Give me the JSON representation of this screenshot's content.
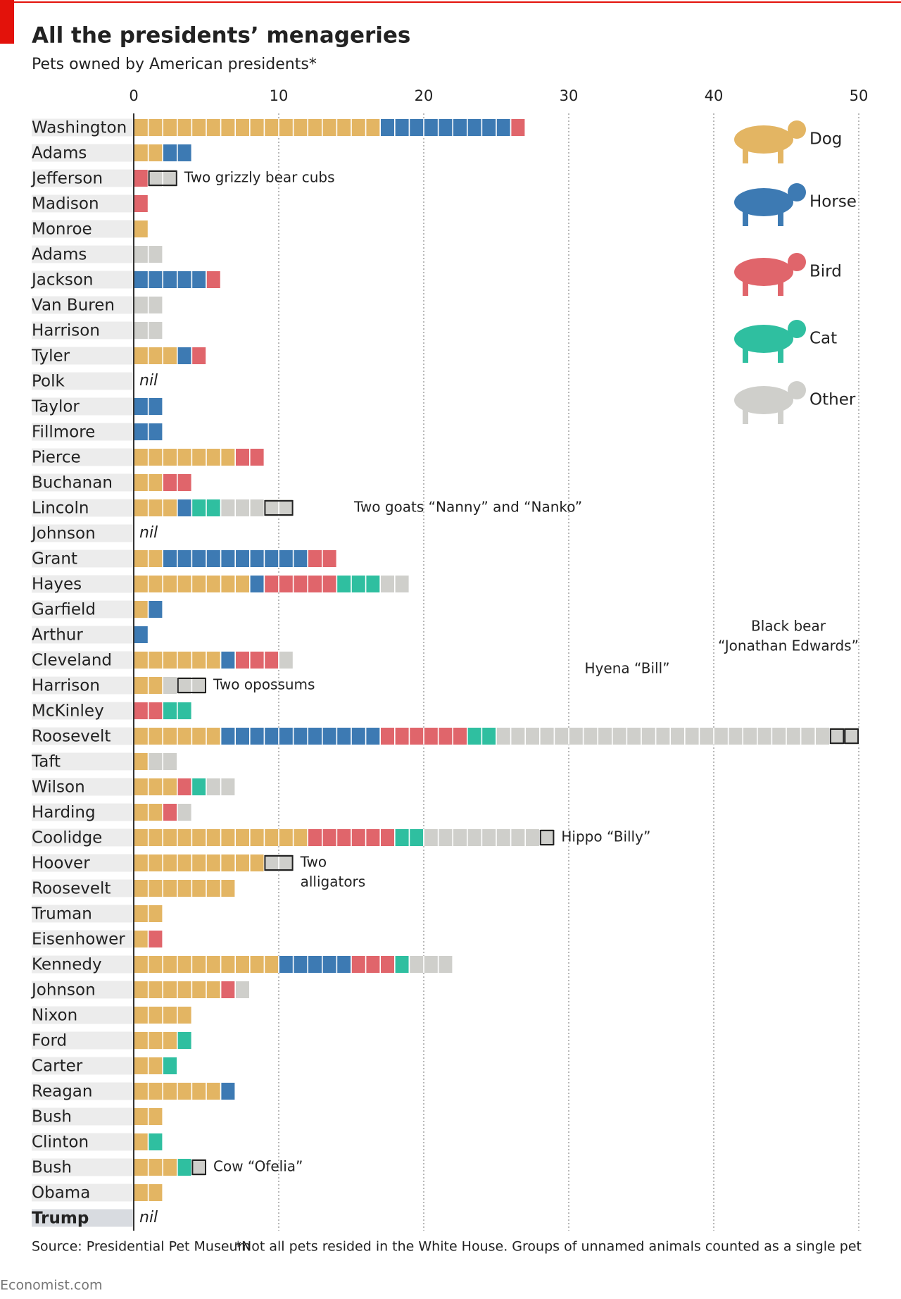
{
  "chart_data": {
    "type": "bar",
    "title": "All the presidents’ menageries",
    "subtitle": "Pets owned by American presidents*",
    "source": "Source: Presidential Pet Museum",
    "footnote": "*Not all pets resided in the White House. Groups of unnamed animals counted as a single pet",
    "brand": "Economist.com",
    "xlim": [
      0,
      50
    ],
    "xticks": [
      0,
      10,
      20,
      30,
      40,
      50
    ],
    "grid": true,
    "legend": "right",
    "categories": [
      "Washington",
      "Adams",
      "Jefferson",
      "Madison",
      "Monroe",
      "Adams",
      "Jackson",
      "Van Buren",
      "Harrison",
      "Tyler",
      "Polk",
      "Taylor",
      "Fillmore",
      "Pierce",
      "Buchanan",
      "Lincoln",
      "Johnson",
      "Grant",
      "Hayes",
      "Garfield",
      "Arthur",
      "Cleveland",
      "Harrison",
      "McKinley",
      "Roosevelt",
      "Taft",
      "Wilson",
      "Harding",
      "Coolidge",
      "Hoover",
      "Roosevelt",
      "Truman",
      "Eisenhower",
      "Kennedy",
      "Johnson",
      "Nixon",
      "Ford",
      "Carter",
      "Reagan",
      "Bush",
      "Clinton",
      "Bush",
      "Obama",
      "Trump"
    ],
    "value_labels": [
      null,
      null,
      null,
      null,
      null,
      null,
      null,
      null,
      null,
      null,
      "nil",
      null,
      null,
      null,
      null,
      null,
      "nil",
      null,
      null,
      null,
      null,
      null,
      null,
      null,
      null,
      null,
      null,
      null,
      null,
      null,
      null,
      null,
      null,
      null,
      null,
      null,
      null,
      null,
      null,
      null,
      null,
      null,
      null,
      "nil"
    ],
    "series": [
      {
        "name": "Dog",
        "color": "#e3b563",
        "values": [
          17,
          2,
          0,
          0,
          1,
          0,
          0,
          0,
          0,
          3,
          0,
          0,
          0,
          7,
          2,
          3,
          0,
          2,
          8,
          1,
          0,
          6,
          2,
          0,
          6,
          1,
          3,
          2,
          12,
          9,
          7,
          2,
          1,
          10,
          6,
          4,
          3,
          2,
          6,
          2,
          1,
          3,
          2,
          0
        ]
      },
      {
        "name": "Horse",
        "color": "#3d7ab3",
        "values": [
          9,
          2,
          0,
          0,
          0,
          0,
          5,
          0,
          0,
          1,
          0,
          2,
          2,
          0,
          0,
          1,
          0,
          10,
          1,
          1,
          1,
          1,
          0,
          0,
          11,
          0,
          0,
          0,
          0,
          0,
          0,
          0,
          0,
          5,
          0,
          0,
          0,
          0,
          1,
          0,
          0,
          0,
          0,
          0
        ]
      },
      {
        "name": "Bird",
        "color": "#e0656b",
        "values": [
          1,
          0,
          1,
          1,
          0,
          0,
          1,
          0,
          0,
          1,
          0,
          0,
          0,
          2,
          2,
          0,
          0,
          2,
          5,
          0,
          0,
          3,
          0,
          2,
          6,
          0,
          1,
          1,
          6,
          0,
          0,
          0,
          1,
          3,
          1,
          0,
          0,
          0,
          0,
          0,
          0,
          0,
          0,
          0
        ]
      },
      {
        "name": "Cat",
        "color": "#2fbfa0",
        "values": [
          0,
          0,
          0,
          0,
          0,
          0,
          0,
          0,
          0,
          0,
          0,
          0,
          0,
          0,
          0,
          2,
          0,
          0,
          3,
          0,
          0,
          0,
          0,
          2,
          2,
          0,
          1,
          0,
          2,
          0,
          0,
          0,
          0,
          1,
          0,
          0,
          1,
          1,
          0,
          0,
          1,
          1,
          0,
          0
        ]
      },
      {
        "name": "Other",
        "color": "#cfcfcb",
        "values": [
          0,
          0,
          2,
          0,
          0,
          2,
          0,
          2,
          2,
          0,
          0,
          0,
          0,
          0,
          0,
          5,
          0,
          0,
          2,
          0,
          0,
          1,
          3,
          0,
          25,
          2,
          2,
          1,
          9,
          2,
          0,
          0,
          0,
          3,
          1,
          0,
          0,
          0,
          0,
          0,
          0,
          1,
          0,
          0
        ]
      }
    ],
    "notes": [
      null,
      null,
      [
        {
          "text": [
            "Two grizzly bear cubs"
          ],
          "group": 2
        }
      ],
      null,
      null,
      null,
      null,
      null,
      null,
      null,
      null,
      null,
      null,
      null,
      null,
      [
        {
          "text": [
            "Two goats “Nanny” and “Nanko”"
          ],
          "group": 2
        }
      ],
      null,
      null,
      null,
      null,
      null,
      null,
      [
        {
          "text": [
            "Two opossums"
          ],
          "group": 2
        }
      ],
      null,
      [
        {
          "text": [
            "Hyena “Bill”"
          ],
          "group": 1
        },
        {
          "text": [
            "Black bear",
            "“Jonathan Edwards”"
          ],
          "group": 1
        }
      ],
      null,
      null,
      null,
      [
        {
          "text": [
            "Hippo “Billy”"
          ],
          "group": 1
        }
      ],
      [
        {
          "text": [
            "Two",
            "alligators"
          ],
          "group": 2
        }
      ],
      null,
      null,
      null,
      null,
      null,
      null,
      null,
      null,
      null,
      null,
      null,
      [
        {
          "text": [
            "Cow “Ofelia”"
          ],
          "group": 1
        }
      ],
      null,
      null
    ]
  }
}
